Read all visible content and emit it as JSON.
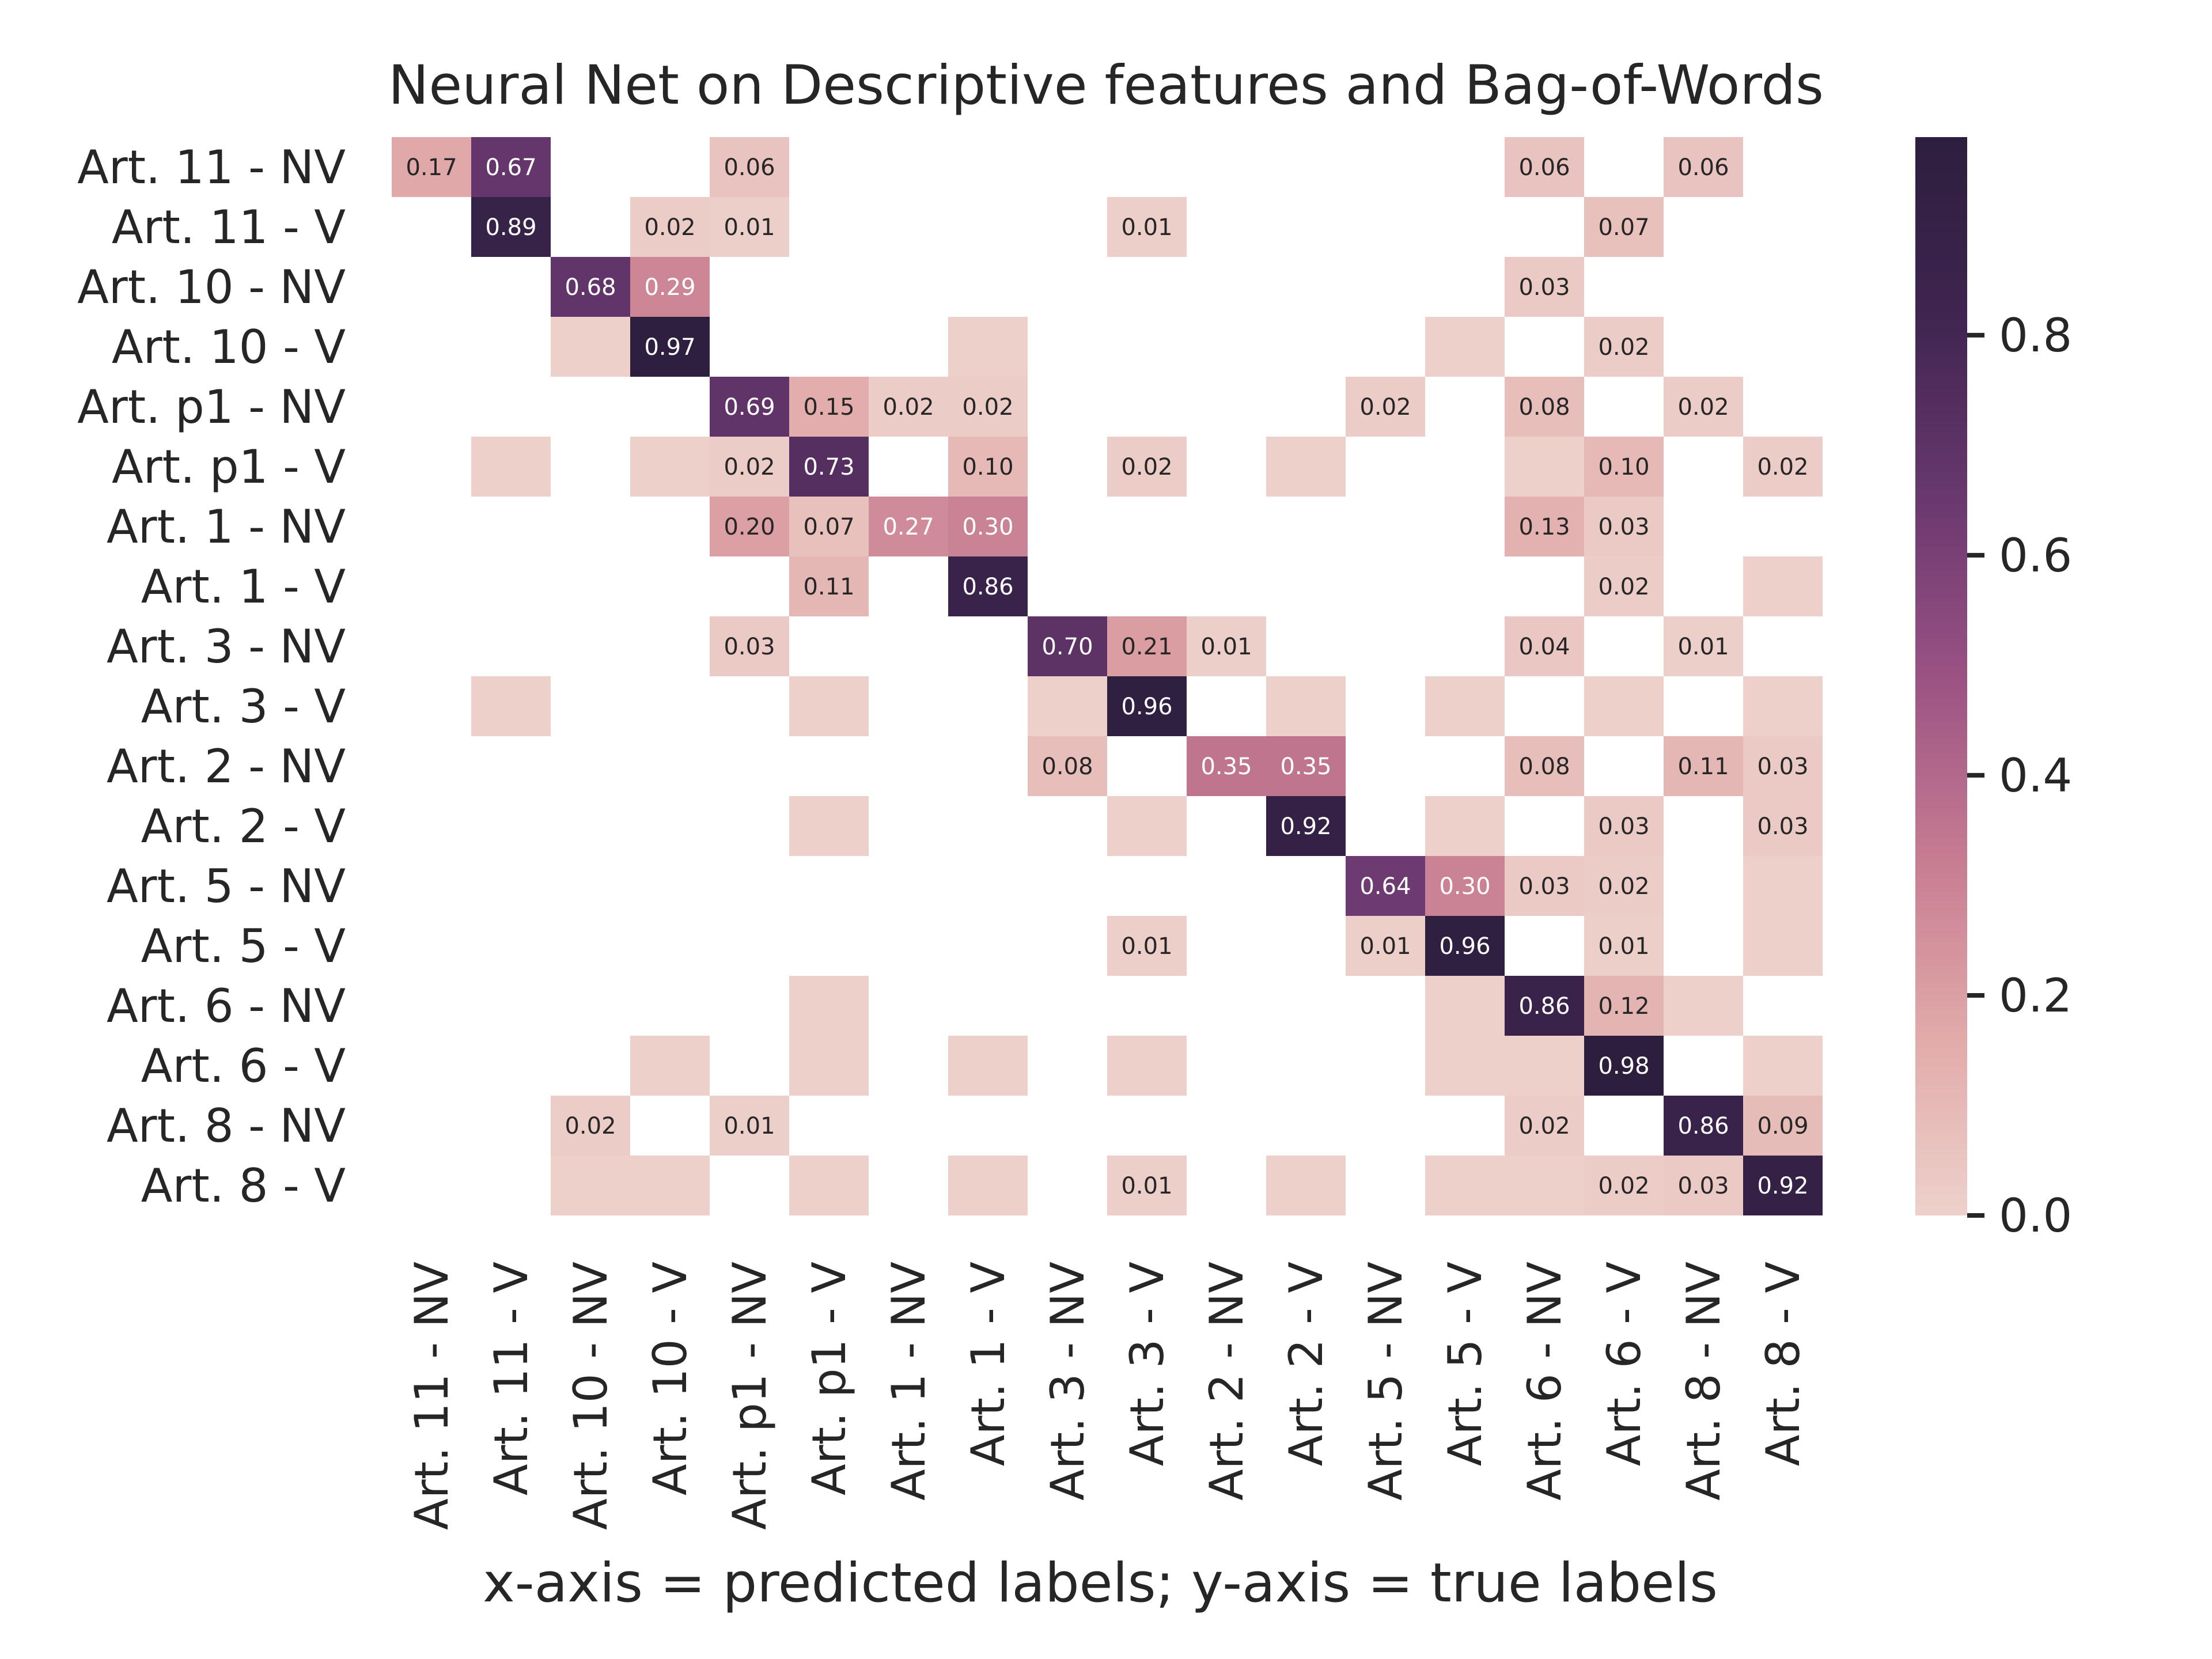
{
  "chart_data": {
    "type": "heatmap",
    "title": "Neural Net on Descriptive features and Bag-of-Words",
    "xlabel": "x-axis = predicted labels; y-axis = true labels",
    "ylabel": "",
    "categories": [
      "Art. 11 - NV",
      "Art. 11 - V",
      "Art. 10 - NV",
      "Art. 10 - V",
      "Art. p1 - NV",
      "Art. p1 - V",
      "Art. 1 - NV",
      "Art. 1 - V",
      "Art. 3 - NV",
      "Art. 3 - V",
      "Art. 2 - NV",
      "Art. 2 - V",
      "Art. 5 - NV",
      "Art. 5 - V",
      "Art. 6 - NV",
      "Art. 6 - V",
      "Art. 8 - NV",
      "Art. 8 - V"
    ],
    "x": [
      "Art. 11 - NV",
      "Art. 11 - V",
      "Art. 10 - NV",
      "Art. 10 - V",
      "Art. p1 - NV",
      "Art. p1 - V",
      "Art. 1 - NV",
      "Art. 1 - V",
      "Art. 3 - NV",
      "Art. 3 - V",
      "Art. 2 - NV",
      "Art. 2 - V",
      "Art. 5 - NV",
      "Art. 5 - V",
      "Art. 6 - NV",
      "Art. 6 - V",
      "Art. 8 - NV",
      "Art. 8 - V"
    ],
    "y": [
      "Art. 11 - NV",
      "Art. 11 - V",
      "Art. 10 - NV",
      "Art. 10 - V",
      "Art. p1 - NV",
      "Art. p1 - V",
      "Art. 1 - NV",
      "Art. 1 - V",
      "Art. 3 - NV",
      "Art. 3 - V",
      "Art. 2 - NV",
      "Art. 2 - V",
      "Art. 5 - NV",
      "Art. 5 - V",
      "Art. 6 - NV",
      "Art. 6 - V",
      "Art. 8 - NV",
      "Art. 8 - V"
    ],
    "values": [
      [
        0.17,
        0.67,
        null,
        null,
        0.06,
        null,
        null,
        null,
        null,
        null,
        null,
        null,
        null,
        null,
        0.06,
        null,
        0.06,
        null
      ],
      [
        null,
        0.89,
        null,
        0.02,
        0.01,
        null,
        null,
        null,
        null,
        0.01,
        null,
        null,
        null,
        null,
        null,
        0.07,
        null,
        null
      ],
      [
        null,
        null,
        0.68,
        0.29,
        null,
        null,
        null,
        null,
        null,
        null,
        null,
        null,
        null,
        null,
        0.03,
        null,
        null,
        null
      ],
      [
        null,
        null,
        0.004,
        0.97,
        null,
        null,
        null,
        0.004,
        null,
        null,
        null,
        null,
        null,
        0.004,
        null,
        0.02,
        null,
        null
      ],
      [
        null,
        null,
        null,
        null,
        0.69,
        0.15,
        0.02,
        0.02,
        null,
        null,
        null,
        null,
        0.02,
        null,
        0.08,
        null,
        0.02,
        null
      ],
      [
        null,
        0.004,
        null,
        0.004,
        0.02,
        0.73,
        null,
        0.1,
        null,
        0.02,
        null,
        0.004,
        null,
        null,
        0.004,
        0.1,
        null,
        0.02
      ],
      [
        null,
        null,
        null,
        null,
        0.2,
        0.07,
        0.27,
        0.3,
        null,
        null,
        null,
        null,
        null,
        null,
        0.13,
        0.03,
        null,
        null
      ],
      [
        null,
        null,
        null,
        null,
        null,
        0.11,
        null,
        0.86,
        null,
        null,
        null,
        null,
        null,
        null,
        null,
        0.02,
        null,
        0.004
      ],
      [
        null,
        null,
        null,
        null,
        0.03,
        null,
        null,
        null,
        0.7,
        0.21,
        0.01,
        null,
        null,
        null,
        0.04,
        null,
        0.01,
        null
      ],
      [
        null,
        0.004,
        null,
        null,
        null,
        0.004,
        null,
        null,
        0.004,
        0.96,
        null,
        0.004,
        null,
        0.004,
        null,
        0.004,
        null,
        0.004
      ],
      [
        null,
        null,
        null,
        null,
        null,
        null,
        null,
        null,
        0.08,
        null,
        0.35,
        0.35,
        null,
        null,
        0.08,
        null,
        0.11,
        0.03
      ],
      [
        null,
        null,
        null,
        null,
        null,
        0.004,
        null,
        null,
        null,
        0.004,
        null,
        0.92,
        null,
        0.004,
        null,
        0.03,
        null,
        0.03
      ],
      [
        null,
        null,
        null,
        null,
        null,
        null,
        null,
        null,
        null,
        null,
        null,
        null,
        0.64,
        0.3,
        0.03,
        0.02,
        null,
        0.004
      ],
      [
        null,
        null,
        null,
        null,
        null,
        null,
        null,
        null,
        null,
        0.01,
        null,
        null,
        0.01,
        0.96,
        null,
        0.01,
        null,
        0.004
      ],
      [
        null,
        null,
        null,
        null,
        null,
        0.004,
        null,
        null,
        null,
        null,
        null,
        null,
        null,
        0.004,
        0.86,
        0.12,
        0.004,
        null
      ],
      [
        null,
        null,
        null,
        0.004,
        null,
        0.004,
        null,
        0.004,
        null,
        0.004,
        null,
        null,
        null,
        0.004,
        0.004,
        0.98,
        null,
        0.004
      ],
      [
        null,
        null,
        0.02,
        null,
        0.01,
        null,
        null,
        null,
        null,
        null,
        null,
        null,
        null,
        null,
        0.02,
        null,
        0.86,
        0.09
      ],
      [
        null,
        null,
        0.004,
        0.004,
        null,
        0.004,
        null,
        0.004,
        null,
        0.01,
        null,
        0.004,
        null,
        0.004,
        0.004,
        0.02,
        0.03,
        0.92
      ]
    ],
    "color_scale": {
      "range": [
        0,
        0.98
      ],
      "ticks": [
        0.0,
        0.2,
        0.4,
        0.6,
        0.8
      ],
      "tick_labels": [
        "0.0",
        "0.2",
        "0.4",
        "0.6",
        "0.8"
      ],
      "colors": [
        "#edd1cb",
        "#e1aaa9",
        "#c67b91",
        "#9a5283",
        "#69386f",
        "#3f2550",
        "#2d1e3e"
      ]
    },
    "grid": false,
    "legend": "colorbar-right"
  }
}
